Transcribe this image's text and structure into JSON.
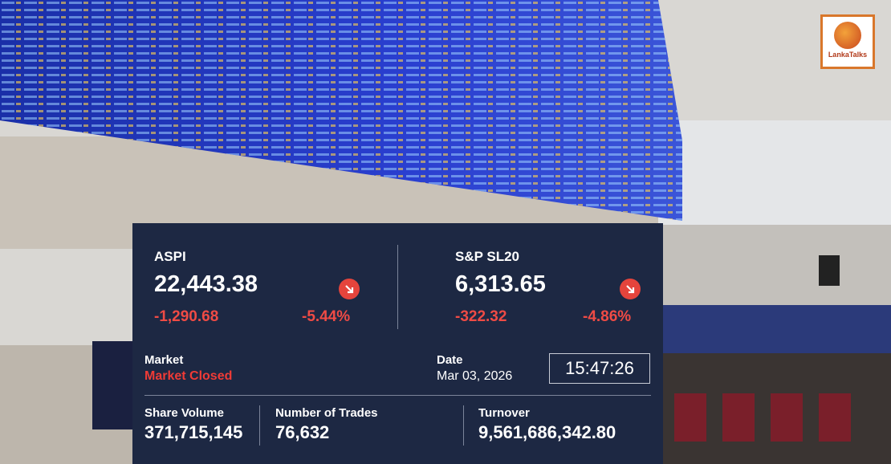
{
  "logo": {
    "text": "LankaTalks"
  },
  "indices": [
    {
      "name": "ASPI",
      "value": "22,443.38",
      "change": "-1,290.68",
      "change_percent": "-5.44%"
    },
    {
      "name": "S&P SL20",
      "value": "6,313.65",
      "change": "-322.32",
      "change_percent": "-4.86%"
    }
  ],
  "market": {
    "label": "Market",
    "status": "Market Closed"
  },
  "date": {
    "label": "Date",
    "value": "Mar 03, 2026",
    "time": "15:47:26"
  },
  "stats": [
    {
      "label": "Share Volume",
      "value": "371,715,145"
    },
    {
      "label": "Number of Trades",
      "value": "76,632"
    },
    {
      "label": "Turnover",
      "value": "9,561,686,342.80"
    }
  ]
}
